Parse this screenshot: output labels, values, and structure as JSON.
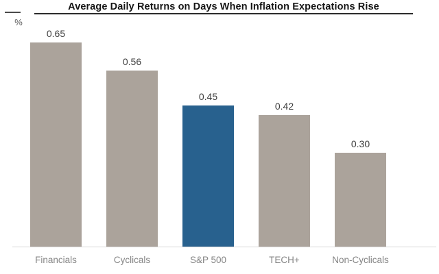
{
  "chart_data": {
    "type": "bar",
    "title": "Average Daily Returns on Days When Inflation Expectations Rise",
    "unit_label": "%",
    "categories": [
      "Financials",
      "Cyclicals",
      "S&P 500",
      "TECH+",
      "Non-Cyclicals"
    ],
    "values": [
      0.65,
      0.56,
      0.45,
      0.42,
      0.3
    ],
    "value_labels": [
      "0.65",
      "0.56",
      "0.45",
      "0.42",
      "0.30"
    ],
    "highlight_index": 2,
    "ylim": [
      0,
      0.78
    ],
    "grid": false,
    "legend": null,
    "colors": {
      "bar_default": "#aba39b",
      "bar_highlight": "#28618e",
      "axis_line": "#d5d5d5",
      "title_text": "#151515",
      "value_label_text": "#3d3d3d",
      "category_label_text": "#848484"
    }
  }
}
